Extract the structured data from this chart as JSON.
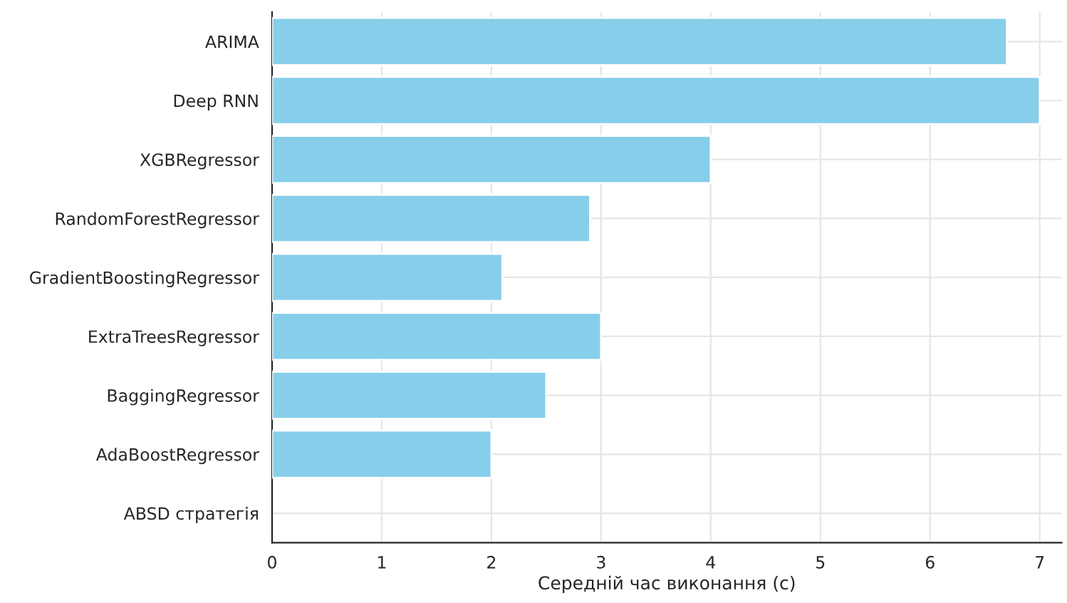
{
  "chart_data": {
    "type": "bar",
    "orientation": "horizontal",
    "xlabel": "Середній час виконання (с)",
    "categories": [
      "ARIMA",
      "Deep RNN",
      "XGBRegressor",
      "RandomForestRegressor",
      "GradientBoostingRegressor",
      "ExtraTreesRegressor",
      "BaggingRegressor",
      "AdaBoostRegressor",
      "ABSD стратегія"
    ],
    "values": [
      6.7,
      7.0,
      4.0,
      2.9,
      2.1,
      3.0,
      2.5,
      2.0,
      null
    ],
    "color": "#87ceeb",
    "xlim": [
      0,
      7.2
    ],
    "xticks": [
      0,
      1,
      2,
      3,
      4,
      5,
      6,
      7
    ],
    "grid": true
  }
}
